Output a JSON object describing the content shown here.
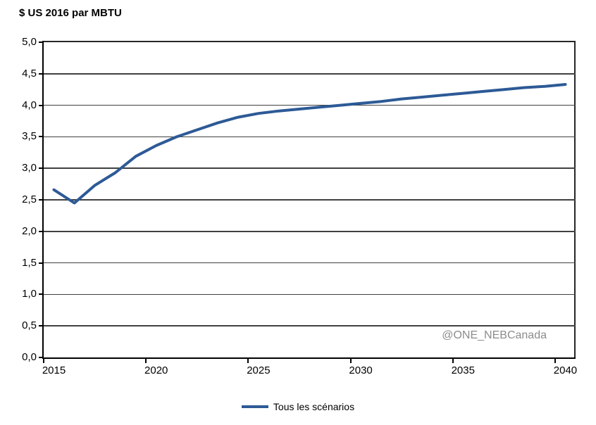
{
  "watermark": "@ONE_NEBCanada",
  "colors": {
    "line": "#2d5a96",
    "grid": "#404040",
    "axis": "#000000",
    "frame": "#262626",
    "watermark": "#8c8c8c",
    "background": "#ffffff"
  },
  "legend": {
    "items": [
      {
        "label": "Tous les scénarios",
        "color": "#2d5a96"
      }
    ]
  },
  "chart_data": {
    "type": "line",
    "title": "$ US 2016 par MBTU",
    "ylabel": "$ US 2016 par MBTU",
    "xlabel": "",
    "x": [
      2015,
      2016,
      2017,
      2018,
      2019,
      2020,
      2021,
      2022,
      2023,
      2024,
      2025,
      2026,
      2027,
      2028,
      2029,
      2030,
      2031,
      2032,
      2033,
      2034,
      2035,
      2036,
      2037,
      2038,
      2039,
      2040
    ],
    "series": [
      {
        "name": "Tous les scénarios",
        "color": "#2d5a96",
        "values": [
          2.66,
          2.45,
          2.73,
          2.93,
          3.19,
          3.36,
          3.5,
          3.61,
          3.72,
          3.81,
          3.87,
          3.91,
          3.94,
          3.97,
          4.0,
          4.03,
          4.06,
          4.1,
          4.13,
          4.16,
          4.19,
          4.22,
          4.25,
          4.28,
          4.3,
          4.33
        ]
      }
    ],
    "ylim": [
      0,
      5
    ],
    "y_tick_step": 0.5,
    "y_tick_labels": [
      "0,0",
      "0,5",
      "1,0",
      "1,5",
      "2,0",
      "2,5",
      "3,0",
      "3,5",
      "4,0",
      "4,5",
      "5,0"
    ],
    "x_tick_labels": [
      "2015",
      "2020",
      "2025",
      "2030",
      "2035",
      "2040"
    ],
    "x_tick_indices": [
      0,
      5,
      10,
      15,
      20,
      25
    ],
    "grid": "horizontal",
    "legend_position": "bottom",
    "decimal_separator": ","
  }
}
